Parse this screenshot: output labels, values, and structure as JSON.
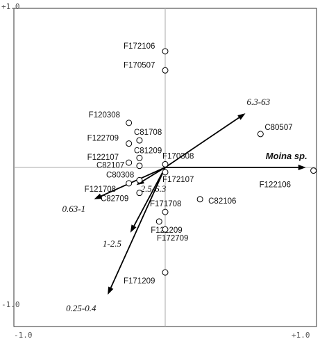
{
  "chart_data": {
    "type": "scatter",
    "title": "",
    "xlabel": "",
    "ylabel": "",
    "xlim": [
      -1.0,
      1.0
    ],
    "ylim": [
      -1.0,
      1.0
    ],
    "grid": false,
    "axis_tick_labels": {
      "x_min": "-1.0",
      "x_max": "+1.0",
      "y_min": "-1.0",
      "y_max": "+1.0"
    },
    "sites": [
      {
        "label": "F172106",
        "x": 0.0,
        "y": 0.73
      },
      {
        "label": "F170507",
        "x": 0.0,
        "y": 0.61
      },
      {
        "label": "F120308",
        "x": -0.24,
        "y": 0.28
      },
      {
        "label": "F122709",
        "x": -0.24,
        "y": 0.15
      },
      {
        "label": "C81708",
        "x": -0.17,
        "y": 0.17
      },
      {
        "label": "F122107",
        "x": -0.24,
        "y": 0.03
      },
      {
        "label": "C81209",
        "x": -0.17,
        "y": 0.06
      },
      {
        "label": "C82107",
        "x": -0.17,
        "y": 0.01
      },
      {
        "label": "F170308",
        "x": 0.0,
        "y": 0.02
      },
      {
        "label": "C80308",
        "x": -0.17,
        "y": -0.08
      },
      {
        "label": "F121708",
        "x": -0.24,
        "y": -0.1
      },
      {
        "label": "C82709",
        "x": -0.17,
        "y": -0.16
      },
      {
        "label": "F172107",
        "x": 0.0,
        "y": -0.03
      },
      {
        "label": "F171708",
        "x": 0.0,
        "y": -0.28
      },
      {
        "label": "C82106",
        "x": 0.23,
        "y": -0.2
      },
      {
        "label": "F121209",
        "x": -0.04,
        "y": -0.34
      },
      {
        "label": "F172709",
        "x": 0.0,
        "y": -0.39
      },
      {
        "label": "F171209",
        "x": 0.0,
        "y": -0.66
      },
      {
        "label": "C80507",
        "x": 0.63,
        "y": 0.21
      },
      {
        "label": "F122106",
        "x": 0.98,
        "y": -0.02
      }
    ],
    "vectors": [
      {
        "label": "6.3-63",
        "x": 0.53,
        "y": 0.34,
        "style": "italic"
      },
      {
        "label": "2.5-6.3",
        "x": -0.19,
        "y": -0.11,
        "style": "italic"
      },
      {
        "label": "0.63-1",
        "x": -0.47,
        "y": -0.2,
        "style": "italic"
      },
      {
        "label": "1-2.5",
        "x": -0.23,
        "y": -0.41,
        "style": "italic"
      },
      {
        "label": "0.25-0.4",
        "x": -0.38,
        "y": -0.8,
        "style": "italic"
      },
      {
        "label": "Moina sp.",
        "x": 0.93,
        "y": 0.0,
        "style": "bold-italic"
      }
    ]
  }
}
